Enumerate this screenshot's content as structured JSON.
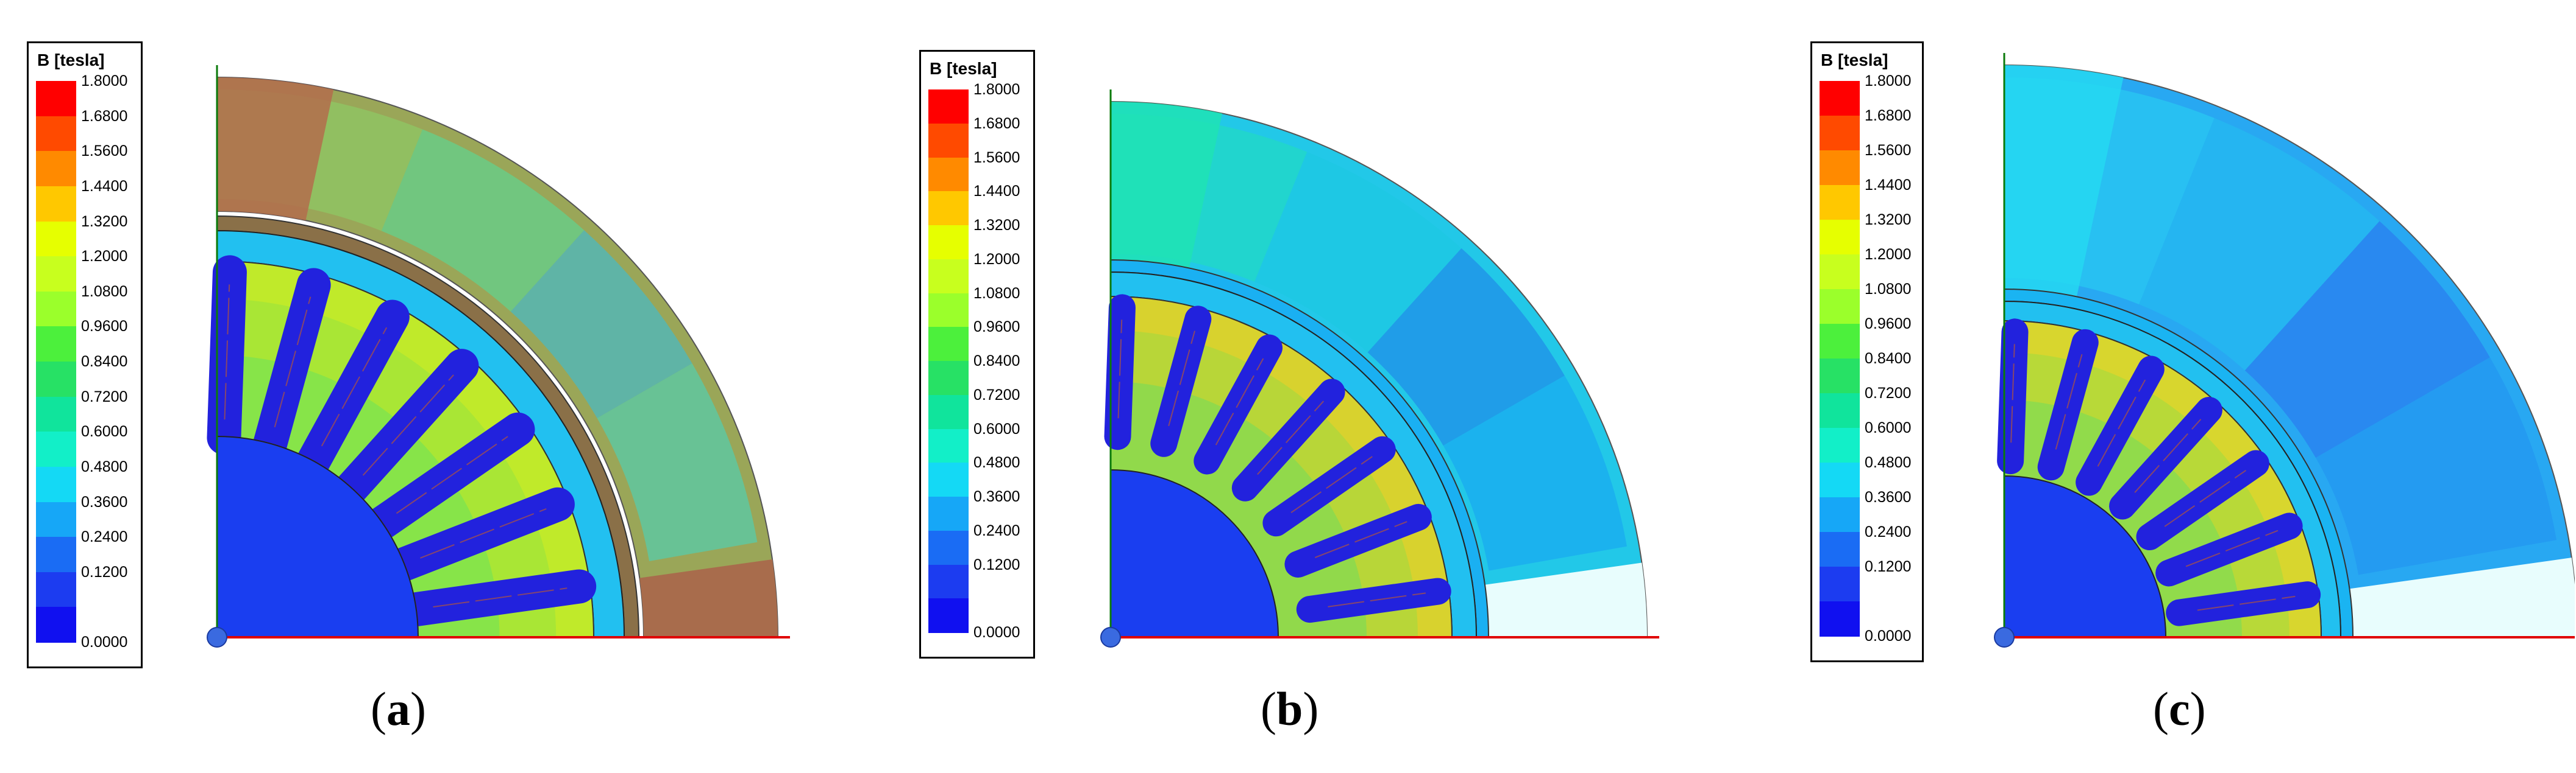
{
  "legend": {
    "title": "B [tesla]",
    "ticks": [
      "1.8000",
      "1.6800",
      "1.5600",
      "1.4400",
      "1.3200",
      "1.2000",
      "1.0800",
      "0.9600",
      "0.8400",
      "0.7200",
      "0.6000",
      "0.4800",
      "0.3600",
      "0.2400",
      "0.1200",
      "0.0000"
    ],
    "colors": [
      "#ff0000",
      "#ff4a00",
      "#ff8a00",
      "#ffc800",
      "#e6ff00",
      "#c8ff1e",
      "#9bff2b",
      "#4cf03c",
      "#27e165",
      "#10e49c",
      "#12efc8",
      "#14d9f5",
      "#16a7f7",
      "#1a6cf4",
      "#1c3cf0",
      "#1010f0"
    ]
  },
  "panels": [
    {
      "label": "a",
      "yoke_color": "#9aa658",
      "yoke_corner_color": "#b36c4c",
      "sleeve_color": "#8a7048",
      "stator_base": "#30b8f0"
    },
    {
      "label": "b",
      "yoke_color": "#22c8e8",
      "yoke_corner_color": "#1ee3b4",
      "sleeve_color": "#1ab0f2",
      "stator_base": "#1c64e8"
    },
    {
      "label": "c",
      "yoke_color": "#28a8f2",
      "yoke_corner_color": "#24d8f2",
      "sleeve_color": "#1ab4f2",
      "stator_base": "#1a6cf0"
    }
  ],
  "captions": [
    "(a)",
    "(b)",
    "(c)"
  ]
}
